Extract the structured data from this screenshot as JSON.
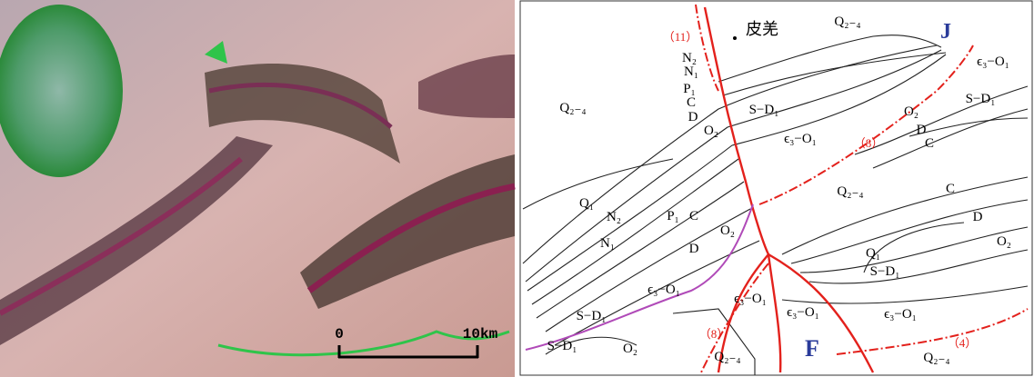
{
  "left_image": {
    "scale_start": "0",
    "scale_end": "10km"
  },
  "right_map": {
    "labels": [
      "（11）",
      "皮羌",
      "Q₂₋₄",
      "J",
      "ϵ₃−O₁",
      "N₂",
      "N₁",
      "P₁",
      "C",
      "D",
      "O₂",
      "S−D₁",
      "Q₂₋₄",
      "ϵ₃−O₁",
      "O₂",
      "S−D₁",
      "D",
      "C",
      "（8）",
      "Q₂₋₄",
      "C",
      "Q₁",
      "N₂",
      "P₁",
      "C",
      "O₂",
      "N₁",
      "D",
      "D",
      "O₂",
      "Q₁",
      "S−D₁",
      "ϵ₃−O₁",
      "ϵ₃−O₁",
      "ϵ₃−O₁",
      "ϵ₃−O₁",
      "S−D₁",
      "（8）",
      "F",
      "（4）",
      "S−D₁",
      "O₂",
      "Q₂₋₄",
      "Q₂₋₄"
    ]
  }
}
